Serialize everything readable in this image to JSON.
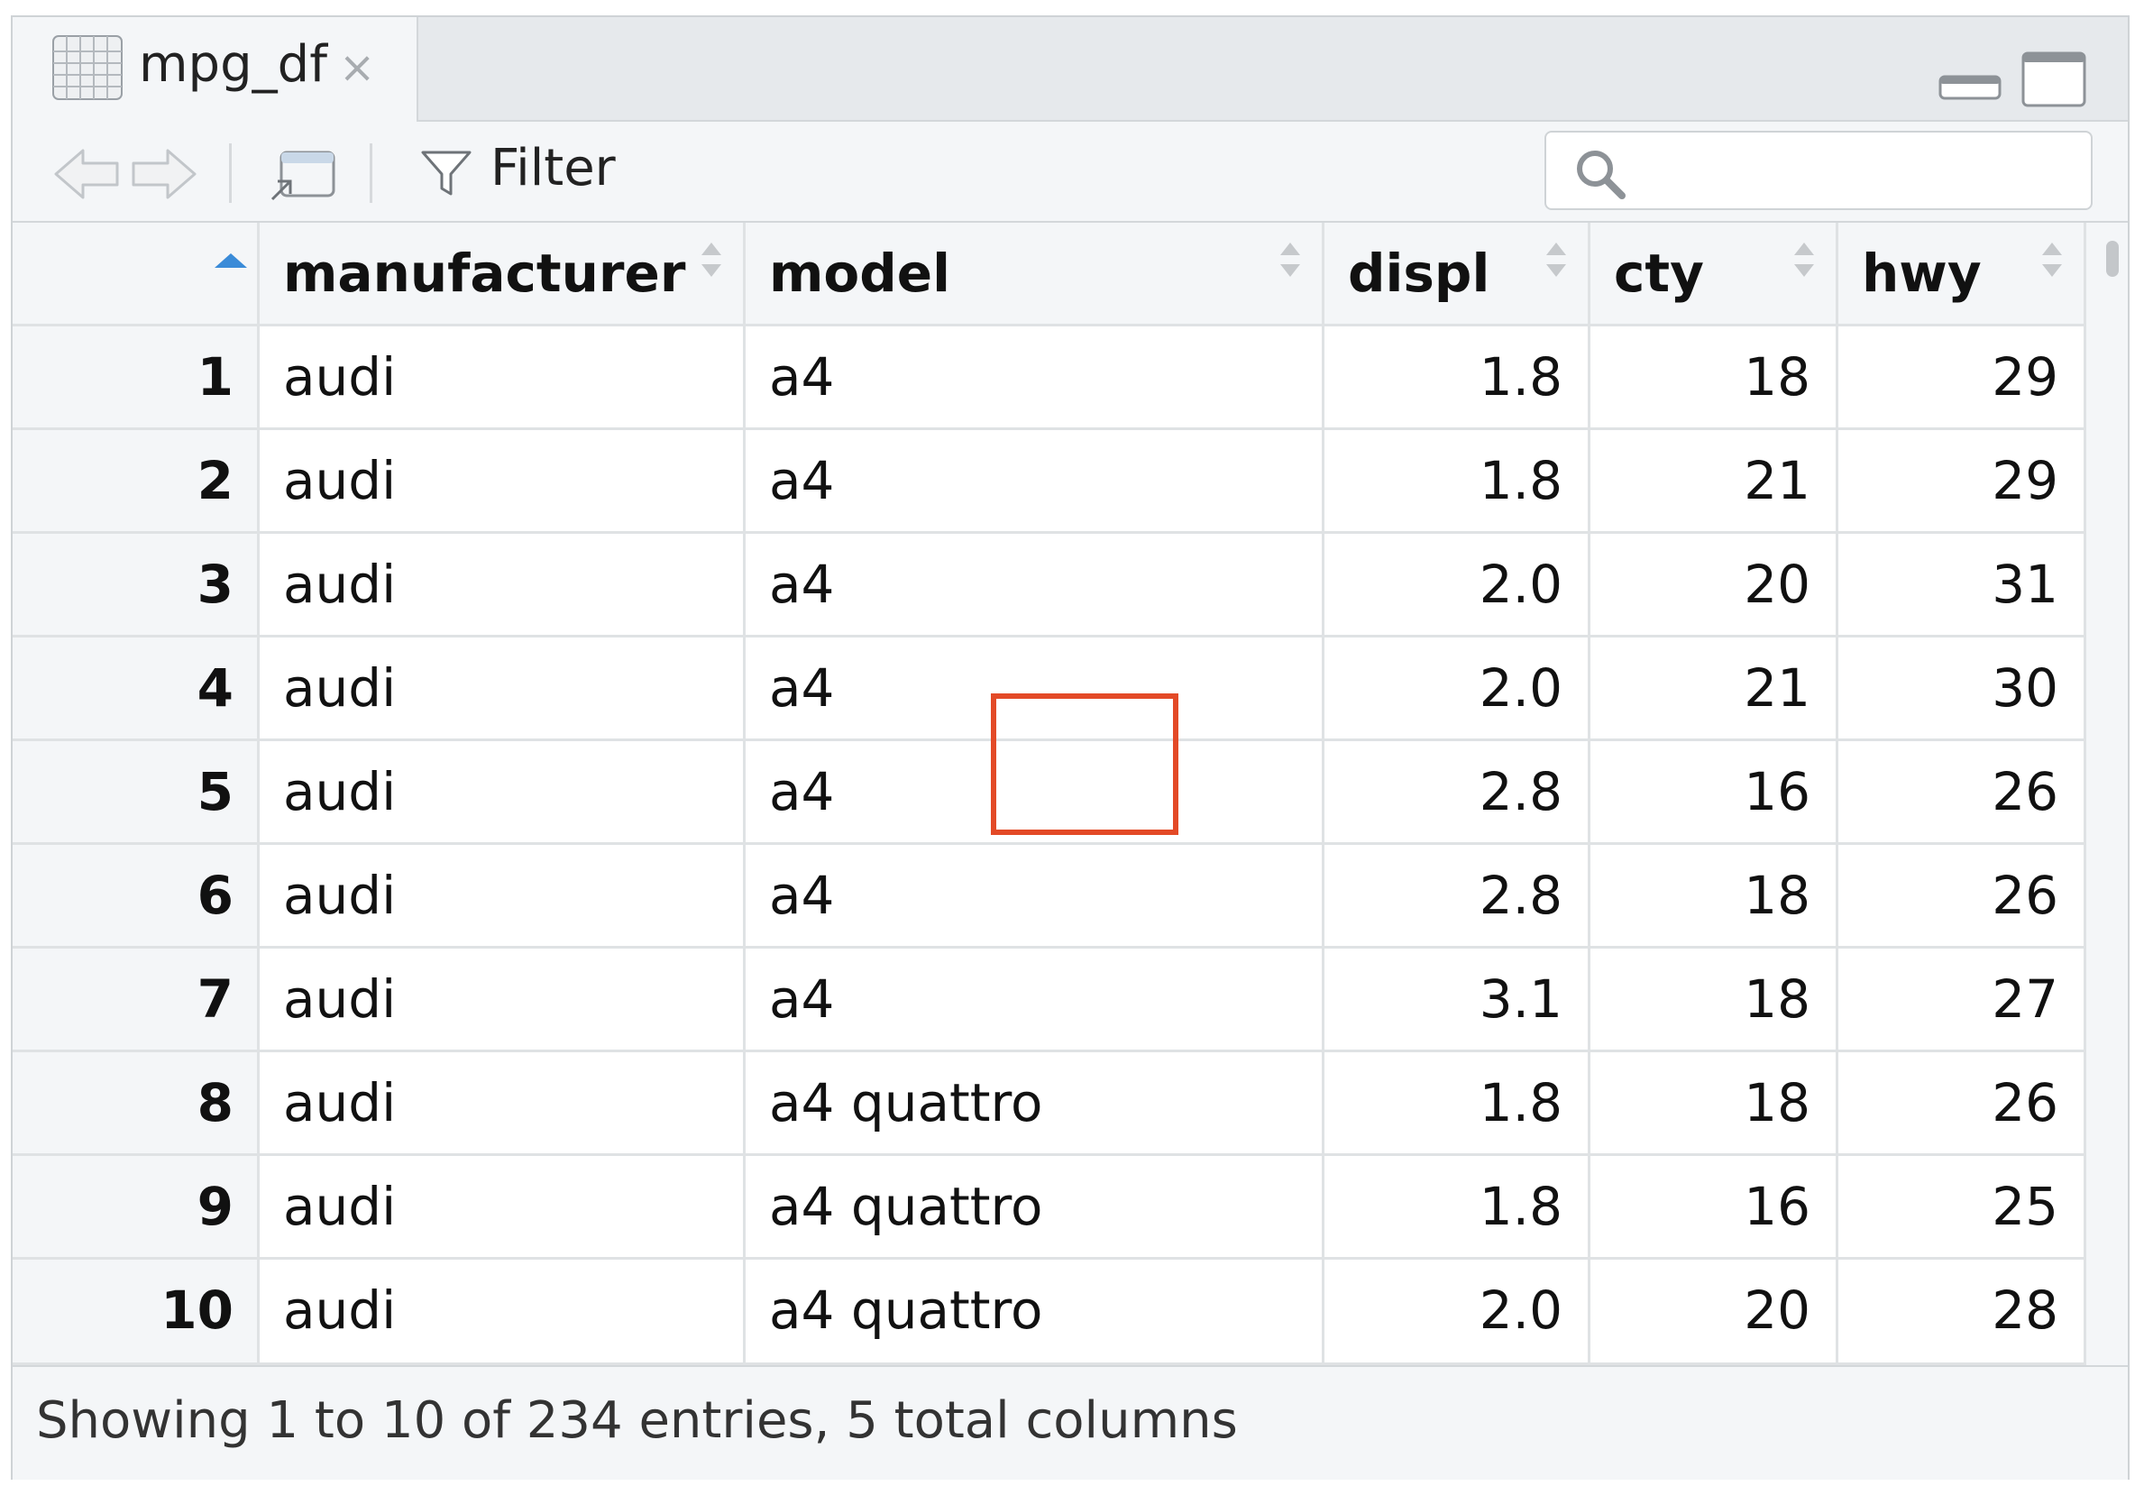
{
  "tab": {
    "title": "mpg_df",
    "close": "×"
  },
  "toolbar": {
    "filter_label": "Filter",
    "search_placeholder": ""
  },
  "columns": [
    {
      "key": "manufacturer",
      "label": "manufacturer"
    },
    {
      "key": "model",
      "label": "model"
    },
    {
      "key": "displ",
      "label": "displ"
    },
    {
      "key": "cty",
      "label": "cty"
    },
    {
      "key": "hwy",
      "label": "hwy"
    }
  ],
  "rows": [
    {
      "id": "1",
      "manufacturer": "audi",
      "model": "a4",
      "displ": "1.8",
      "cty": "18",
      "hwy": "29"
    },
    {
      "id": "2",
      "manufacturer": "audi",
      "model": "a4",
      "displ": "1.8",
      "cty": "21",
      "hwy": "29"
    },
    {
      "id": "3",
      "manufacturer": "audi",
      "model": "a4",
      "displ": "2.0",
      "cty": "20",
      "hwy": "31"
    },
    {
      "id": "4",
      "manufacturer": "audi",
      "model": "a4",
      "displ": "2.0",
      "cty": "21",
      "hwy": "30"
    },
    {
      "id": "5",
      "manufacturer": "audi",
      "model": "a4",
      "displ": "2.8",
      "cty": "16",
      "hwy": "26"
    },
    {
      "id": "6",
      "manufacturer": "audi",
      "model": "a4",
      "displ": "2.8",
      "cty": "18",
      "hwy": "26"
    },
    {
      "id": "7",
      "manufacturer": "audi",
      "model": "a4",
      "displ": "3.1",
      "cty": "18",
      "hwy": "27"
    },
    {
      "id": "8",
      "manufacturer": "audi",
      "model": "a4 quattro",
      "displ": "1.8",
      "cty": "18",
      "hwy": "26"
    },
    {
      "id": "9",
      "manufacturer": "audi",
      "model": "a4 quattro",
      "displ": "1.8",
      "cty": "16",
      "hwy": "25"
    },
    {
      "id": "10",
      "manufacturer": "audi",
      "model": "a4 quattro",
      "displ": "2.0",
      "cty": "20",
      "hwy": "28"
    }
  ],
  "status": {
    "text": "Showing 1 to 10 of 234 entries, 5 total columns"
  },
  "colors": {
    "highlight": "#e34a27",
    "sort_active": "#3a8bd8"
  }
}
